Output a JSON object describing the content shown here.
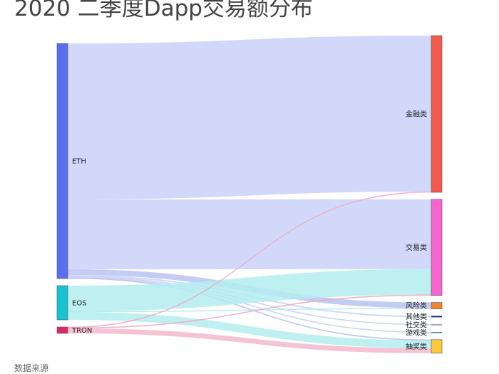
{
  "title": "2020 二季度Dapp交易额分布",
  "source_note": "数据来源",
  "nodes": [
    {
      "id": "ETH",
      "label": "ETH",
      "side": "left",
      "color": "#5a6ef0"
    },
    {
      "id": "EOS",
      "label": "EOS",
      "side": "left",
      "color": "#17c3cf"
    },
    {
      "id": "TRON",
      "label": "TRON",
      "side": "left",
      "color": "#d92a62"
    },
    {
      "id": "finance",
      "label": "金融类",
      "side": "right",
      "color": "#f25a4e"
    },
    {
      "id": "exchange",
      "label": "交易类",
      "side": "right",
      "color": "#f766cf"
    },
    {
      "id": "risk",
      "label": "风险类",
      "side": "right",
      "color": "#f5832c"
    },
    {
      "id": "other",
      "label": "其他类",
      "side": "right",
      "color": "#1f2a6e"
    },
    {
      "id": "social",
      "label": "社交类",
      "side": "right",
      "color": "#8a93b8"
    },
    {
      "id": "game",
      "label": "游戏类",
      "side": "right",
      "color": "#3b8f8f"
    },
    {
      "id": "lottery",
      "label": "抽奖类",
      "side": "right",
      "color": "#fcc93a"
    }
  ],
  "links": [
    {
      "source": "ETH",
      "target": "finance",
      "value": 219,
      "color": "#c9d1f8"
    },
    {
      "source": "ETH",
      "target": "exchange",
      "value": 98,
      "color": "#c9d1f8"
    },
    {
      "source": "ETH",
      "target": "risk",
      "value": 8,
      "color": "#b9c3f3"
    },
    {
      "source": "ETH",
      "target": "other",
      "value": 2,
      "color": "#c9d1f8"
    },
    {
      "source": "ETH",
      "target": "social",
      "value": 1,
      "color": "#c9d1f8"
    },
    {
      "source": "ETH",
      "target": "game",
      "value": 1,
      "color": "#c9d1f8"
    },
    {
      "source": "ETH",
      "target": "lottery",
      "value": 1,
      "color": "#b6bff0"
    },
    {
      "source": "EOS",
      "target": "exchange",
      "value": 36,
      "color": "#b3ecef"
    },
    {
      "source": "EOS",
      "target": "risk",
      "value": 1,
      "color": "#b3ecef"
    },
    {
      "source": "EOS",
      "target": "lottery",
      "value": 11,
      "color": "#b3ecef"
    },
    {
      "source": "TRON",
      "target": "finance",
      "value": 1,
      "color": "#f2a9c4"
    },
    {
      "source": "TRON",
      "target": "exchange",
      "value": 1,
      "color": "#f2a9c4"
    },
    {
      "source": "TRON",
      "target": "lottery",
      "value": 7,
      "color": "#f3b8cc"
    }
  ]
}
